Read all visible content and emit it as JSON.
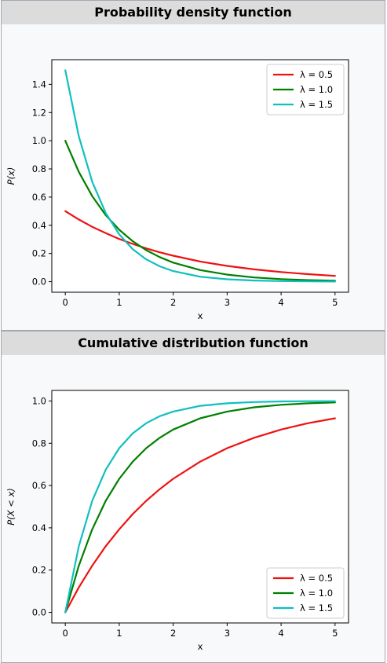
{
  "chart_data": [
    {
      "type": "line",
      "title": "Probability density function",
      "xlabel": "x",
      "ylabel": "P(x)",
      "xlim": [
        -0.25,
        5.25
      ],
      "ylim": [
        -0.075,
        1.575
      ],
      "xticks": [
        0,
        1,
        2,
        3,
        4,
        5
      ],
      "yticks": [
        0.0,
        0.2,
        0.4,
        0.6,
        0.8,
        1.0,
        1.2,
        1.4
      ],
      "ytick_labels": [
        "0.0",
        "0.2",
        "0.4",
        "0.6",
        "0.8",
        "1.0",
        "1.2",
        "1.4"
      ],
      "legend_position": "top-right",
      "grid": false,
      "x": [
        0,
        0.25,
        0.5,
        0.75,
        1,
        1.25,
        1.5,
        1.75,
        2,
        2.5,
        3,
        3.5,
        4,
        4.5,
        5
      ],
      "series": [
        {
          "name": "λ = 0.5",
          "color": "#ee1111",
          "values": [
            0.5,
            0.441,
            0.389,
            0.344,
            0.303,
            0.268,
            0.236,
            0.208,
            0.184,
            0.143,
            0.112,
            0.087,
            0.068,
            0.053,
            0.041
          ]
        },
        {
          "name": "λ = 1.0",
          "color": "#008000",
          "values": [
            1.0,
            0.779,
            0.607,
            0.472,
            0.368,
            0.287,
            0.223,
            0.174,
            0.135,
            0.082,
            0.05,
            0.03,
            0.018,
            0.011,
            0.007
          ]
        },
        {
          "name": "λ = 1.5",
          "color": "#11bfbf",
          "values": [
            1.5,
            1.031,
            0.709,
            0.487,
            0.335,
            0.23,
            0.158,
            0.109,
            0.075,
            0.035,
            0.017,
            0.008,
            0.004,
            0.002,
            0.001
          ]
        }
      ]
    },
    {
      "type": "line",
      "title": "Cumulative distribution function",
      "xlabel": "x",
      "ylabel": "P(X < x)",
      "xlim": [
        -0.25,
        5.25
      ],
      "ylim": [
        -0.05,
        1.05
      ],
      "xticks": [
        0,
        1,
        2,
        3,
        4,
        5
      ],
      "yticks": [
        0.0,
        0.2,
        0.4,
        0.6,
        0.8,
        1.0
      ],
      "ytick_labels": [
        "0.0",
        "0.2",
        "0.4",
        "0.6",
        "0.8",
        "1.0"
      ],
      "legend_position": "bottom-right",
      "grid": false,
      "x": [
        0,
        0.25,
        0.5,
        0.75,
        1,
        1.25,
        1.5,
        1.75,
        2,
        2.5,
        3,
        3.5,
        4,
        4.5,
        5
      ],
      "series": [
        {
          "name": "λ = 0.5",
          "color": "#ee1111",
          "values": [
            0.0,
            0.118,
            0.221,
            0.313,
            0.393,
            0.465,
            0.528,
            0.583,
            0.632,
            0.713,
            0.777,
            0.826,
            0.865,
            0.895,
            0.918
          ]
        },
        {
          "name": "λ = 1.0",
          "color": "#008000",
          "values": [
            0.0,
            0.221,
            0.393,
            0.528,
            0.632,
            0.713,
            0.777,
            0.826,
            0.865,
            0.918,
            0.95,
            0.97,
            0.982,
            0.989,
            0.993
          ]
        },
        {
          "name": "λ = 1.5",
          "color": "#11bfbf",
          "values": [
            0.0,
            0.313,
            0.528,
            0.675,
            0.777,
            0.847,
            0.895,
            0.928,
            0.95,
            0.977,
            0.989,
            0.995,
            0.998,
            0.999,
            0.999
          ]
        }
      ]
    }
  ]
}
